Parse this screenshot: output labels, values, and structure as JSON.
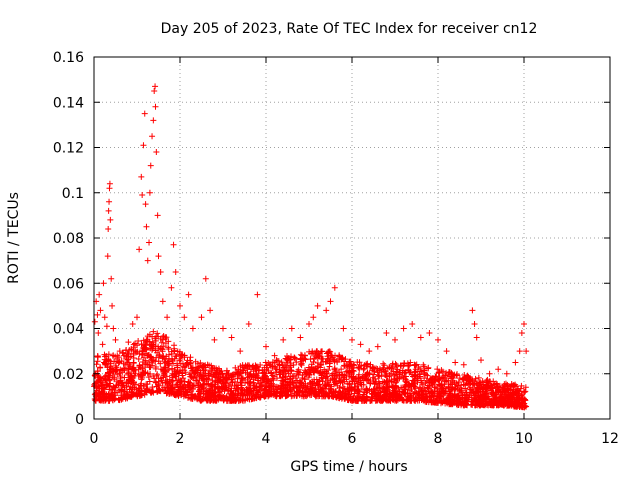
{
  "chart_data": {
    "type": "scatter",
    "title": "Day 205 of 2023, Rate Of TEC Index for receiver cn12",
    "xlabel": "GPS time / hours",
    "ylabel": "ROTI / TECUs",
    "xlim": [
      0,
      12
    ],
    "ylim": [
      0,
      0.16
    ],
    "grid": true,
    "legend": "none",
    "marker": "+",
    "colors": {
      "series": "#ff0000",
      "grid": "#a0a0a0",
      "axis": "#000000"
    },
    "x_ticks": [
      {
        "value": 0,
        "label": "0"
      },
      {
        "value": 2,
        "label": "2"
      },
      {
        "value": 4,
        "label": "4"
      },
      {
        "value": 6,
        "label": "6"
      },
      {
        "value": 8,
        "label": "8"
      },
      {
        "value": 10,
        "label": "10"
      },
      {
        "value": 12,
        "label": "12"
      }
    ],
    "y_ticks": [
      {
        "value": 0,
        "label": "0"
      },
      {
        "value": 0.02,
        "label": "0.02"
      },
      {
        "value": 0.04,
        "label": "0.04"
      },
      {
        "value": 0.06,
        "label": "0.06"
      },
      {
        "value": 0.08,
        "label": "0.08"
      },
      {
        "value": 0.1,
        "label": "0.1"
      },
      {
        "value": 0.12,
        "label": "0.12"
      },
      {
        "value": 0.14,
        "label": "0.14"
      },
      {
        "value": 0.16,
        "label": "0.16"
      }
    ],
    "series": [
      {
        "name": "ROTI",
        "points": [
          [
            0.02,
            0.043
          ],
          [
            0.05,
            0.052
          ],
          [
            0.08,
            0.046
          ],
          [
            0.1,
            0.038
          ],
          [
            0.12,
            0.055
          ],
          [
            0.15,
            0.048
          ],
          [
            0.2,
            0.033
          ],
          [
            0.22,
            0.06
          ],
          [
            0.25,
            0.045
          ],
          [
            0.3,
            0.041
          ],
          [
            0.32,
            0.072
          ],
          [
            0.33,
            0.084
          ],
          [
            0.34,
            0.092
          ],
          [
            0.35,
            0.096
          ],
          [
            0.36,
            0.102
          ],
          [
            0.37,
            0.104
          ],
          [
            0.38,
            0.088
          ],
          [
            0.4,
            0.062
          ],
          [
            0.42,
            0.05
          ],
          [
            0.45,
            0.04
          ],
          [
            0.5,
            0.035
          ],
          [
            0.6,
            0.03
          ],
          [
            0.7,
            0.028
          ],
          [
            0.8,
            0.034
          ],
          [
            0.9,
            0.042
          ],
          [
            1.0,
            0.045
          ],
          [
            1.05,
            0.075
          ],
          [
            1.1,
            0.107
          ],
          [
            1.12,
            0.099
          ],
          [
            1.15,
            0.121
          ],
          [
            1.18,
            0.135
          ],
          [
            1.2,
            0.095
          ],
          [
            1.22,
            0.085
          ],
          [
            1.25,
            0.07
          ],
          [
            1.28,
            0.078
          ],
          [
            1.3,
            0.1
          ],
          [
            1.32,
            0.112
          ],
          [
            1.35,
            0.125
          ],
          [
            1.38,
            0.132
          ],
          [
            1.4,
            0.145
          ],
          [
            1.42,
            0.147
          ],
          [
            1.43,
            0.138
          ],
          [
            1.45,
            0.118
          ],
          [
            1.48,
            0.09
          ],
          [
            1.5,
            0.072
          ],
          [
            1.55,
            0.065
          ],
          [
            1.6,
            0.052
          ],
          [
            1.7,
            0.045
          ],
          [
            1.8,
            0.058
          ],
          [
            1.85,
            0.077
          ],
          [
            1.9,
            0.065
          ],
          [
            2.0,
            0.05
          ],
          [
            2.1,
            0.045
          ],
          [
            2.2,
            0.055
          ],
          [
            2.3,
            0.04
          ],
          [
            2.5,
            0.045
          ],
          [
            2.6,
            0.062
          ],
          [
            2.7,
            0.048
          ],
          [
            2.8,
            0.035
          ],
          [
            3.0,
            0.04
          ],
          [
            3.2,
            0.036
          ],
          [
            3.4,
            0.03
          ],
          [
            3.6,
            0.042
          ],
          [
            3.8,
            0.055
          ],
          [
            4.0,
            0.032
          ],
          [
            4.2,
            0.028
          ],
          [
            4.4,
            0.035
          ],
          [
            4.6,
            0.04
          ],
          [
            4.8,
            0.036
          ],
          [
            5.0,
            0.042
          ],
          [
            5.1,
            0.045
          ],
          [
            5.2,
            0.05
          ],
          [
            5.4,
            0.048
          ],
          [
            5.5,
            0.052
          ],
          [
            5.6,
            0.058
          ],
          [
            5.8,
            0.04
          ],
          [
            6.0,
            0.035
          ],
          [
            6.2,
            0.033
          ],
          [
            6.4,
            0.03
          ],
          [
            6.6,
            0.032
          ],
          [
            6.8,
            0.038
          ],
          [
            7.0,
            0.035
          ],
          [
            7.2,
            0.04
          ],
          [
            7.4,
            0.042
          ],
          [
            7.6,
            0.036
          ],
          [
            7.8,
            0.038
          ],
          [
            8.0,
            0.035
          ],
          [
            8.2,
            0.03
          ],
          [
            8.4,
            0.025
          ],
          [
            8.6,
            0.024
          ],
          [
            8.8,
            0.048
          ],
          [
            8.85,
            0.042
          ],
          [
            8.9,
            0.036
          ],
          [
            9.0,
            0.026
          ],
          [
            9.2,
            0.02
          ],
          [
            9.4,
            0.022
          ],
          [
            9.6,
            0.02
          ],
          [
            9.8,
            0.025
          ],
          [
            9.9,
            0.03
          ],
          [
            9.95,
            0.038
          ],
          [
            10.0,
            0.042
          ],
          [
            10.05,
            0.03
          ]
        ]
      }
    ],
    "bulk_band": [
      [
        0.0,
        0.008,
        0.03
      ],
      [
        0.5,
        0.008,
        0.028
      ],
      [
        1.0,
        0.01,
        0.035
      ],
      [
        1.5,
        0.012,
        0.04
      ],
      [
        2.0,
        0.01,
        0.03
      ],
      [
        2.5,
        0.008,
        0.025
      ],
      [
        3.0,
        0.008,
        0.022
      ],
      [
        3.5,
        0.008,
        0.024
      ],
      [
        4.0,
        0.01,
        0.025
      ],
      [
        4.5,
        0.01,
        0.028
      ],
      [
        5.0,
        0.01,
        0.03
      ],
      [
        5.5,
        0.01,
        0.03
      ],
      [
        6.0,
        0.008,
        0.026
      ],
      [
        6.5,
        0.008,
        0.024
      ],
      [
        7.0,
        0.008,
        0.025
      ],
      [
        7.5,
        0.008,
        0.025
      ],
      [
        8.0,
        0.007,
        0.022
      ],
      [
        8.5,
        0.006,
        0.02
      ],
      [
        9.0,
        0.006,
        0.018
      ],
      [
        9.5,
        0.006,
        0.016
      ],
      [
        10.05,
        0.005,
        0.015
      ]
    ]
  }
}
